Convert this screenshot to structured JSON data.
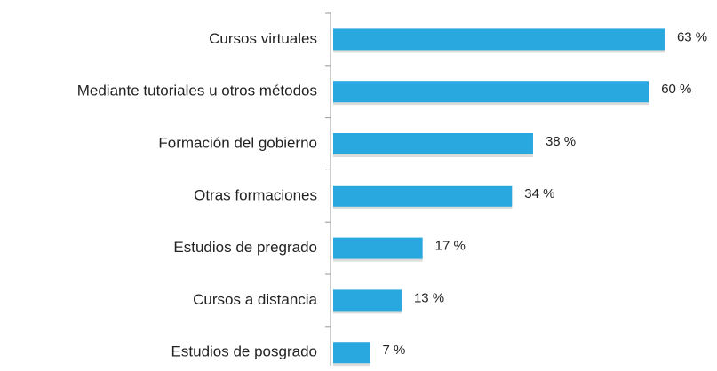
{
  "chart_data": {
    "type": "bar",
    "orientation": "horizontal",
    "categories": [
      "Cursos virtuales",
      "Mediante tutoriales u otros métodos",
      "Formación del gobierno",
      "Otras formaciones",
      "Estudios de pregrado",
      "Cursos a distancia",
      "Estudios de posgrado"
    ],
    "values": [
      63,
      60,
      38,
      34,
      17,
      13,
      7
    ],
    "value_labels": [
      "63 %",
      "60 %",
      "38 %",
      "34 %",
      "17 %",
      "13 %",
      "7 %"
    ],
    "color": "#29a8e0"
  }
}
